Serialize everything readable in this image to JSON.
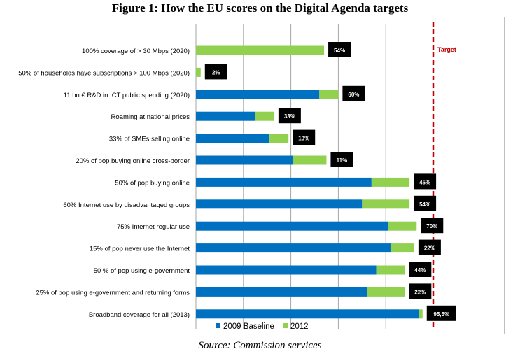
{
  "figure": {
    "title": "Figure 1: How the EU scores on the Digital Agenda targets",
    "source": "Source: Commission services"
  },
  "chart_data": {
    "type": "bar",
    "orientation": "horizontal",
    "stacked": true,
    "title": "Figure 1: How the EU scores on the Digital Agenda targets",
    "xlabel": "",
    "ylabel": "",
    "xlim": [
      0,
      100
    ],
    "grid": true,
    "legend_position": "bottom",
    "target_label": "Target",
    "target_value": 100,
    "categories": [
      "100% coverage of > 30 Mbps (2020)",
      "50% of households have subscriptions > 100 Mbps (2020)",
      "11 bn € R&D in ICT public spending (2020)",
      "Roaming at national prices",
      "33% of SMEs selling online",
      "20% of pop buying online cross-border",
      "50% of pop buying online",
      "60% Internet use by disadvantaged groups",
      "75% Internet regular use",
      "15% of pop never use the Internet",
      "50 % of pop using e-government",
      "25% of pop using e-government and returning forms",
      "Broadband coverage for all (2013)"
    ],
    "data_labels": [
      "54%",
      "2%",
      "60%",
      "33%",
      "13%",
      "11%",
      "45%",
      "54%",
      "70%",
      "22%",
      "44%",
      "22%",
      "95,5%"
    ],
    "series": [
      {
        "name": "2009 Baseline",
        "color": "#0070c0",
        "values": [
          0,
          0,
          52,
          25,
          31,
          41,
          74,
          70,
          81,
          82,
          76,
          72,
          94
        ]
      },
      {
        "name": "2012",
        "color": "#92d050",
        "values": [
          54,
          2,
          8,
          8,
          8,
          14,
          16,
          20,
          12,
          10,
          12,
          16,
          1.5
        ]
      }
    ]
  }
}
